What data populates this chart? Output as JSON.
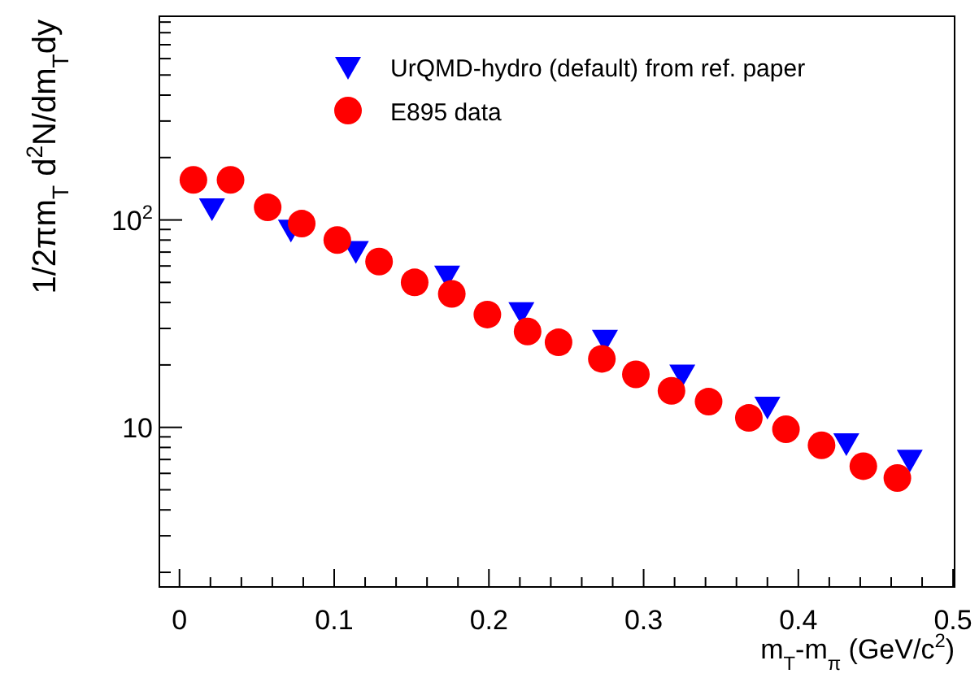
{
  "chart_data": {
    "type": "scatter",
    "xlabel": "m$_{T}$-m$_{π}$ (GeV/c$^{2}$)",
    "ylabel": "1/2πm$_{T}$ d$^{2}$N/dm$_{T}$dy",
    "log": "y",
    "legend": "top",
    "grid": false,
    "xlim": [
      -0.013,
      0.501
    ],
    "ylim": [
      1.7,
      960
    ],
    "xticks": [
      0,
      {
        "value": 0.02,
        "label": null
      },
      {
        "value": 0.04,
        "label": null
      },
      {
        "value": 0.06,
        "label": null
      },
      {
        "value": 0.08,
        "label": null
      },
      0.1,
      {
        "value": 0.12,
        "label": null
      },
      {
        "value": 0.14,
        "label": null
      },
      {
        "value": 0.16,
        "label": null
      },
      {
        "value": 0.18,
        "label": null
      },
      0.2,
      {
        "value": 0.22,
        "label": null
      },
      {
        "value": 0.24,
        "label": null
      },
      {
        "value": 0.26,
        "label": null
      },
      {
        "value": 0.28,
        "label": null
      },
      0.3,
      {
        "value": 0.32,
        "label": null
      },
      {
        "value": 0.34,
        "label": null
      },
      {
        "value": 0.36,
        "label": null
      },
      {
        "value": 0.38,
        "label": null
      },
      0.4,
      {
        "value": 0.42,
        "label": null
      },
      {
        "value": 0.44,
        "label": null
      },
      {
        "value": 0.46,
        "label": null
      },
      {
        "value": 0.48,
        "label": null
      },
      0.5
    ],
    "yticks": [
      {
        "value": 2,
        "label": null
      },
      {
        "value": 3,
        "label": null
      },
      {
        "value": 4,
        "label": null
      },
      {
        "value": 5,
        "label": null
      },
      {
        "value": 6,
        "label": null
      },
      {
        "value": 7,
        "label": null
      },
      {
        "value": 8,
        "label": null
      },
      {
        "value": 9,
        "label": null
      },
      10,
      {
        "value": 20,
        "label": null
      },
      {
        "value": 30,
        "label": null
      },
      {
        "value": 40,
        "label": null
      },
      {
        "value": 50,
        "label": null
      },
      {
        "value": 60,
        "label": null
      },
      {
        "value": 70,
        "label": null
      },
      {
        "value": 80,
        "label": null
      },
      {
        "value": 90,
        "label": null
      },
      {
        "value": 100,
        "label": "10$^{2}$"
      },
      {
        "value": 200,
        "label": null
      },
      {
        "value": 300,
        "label": null
      },
      {
        "value": 400,
        "label": null
      },
      {
        "value": 500,
        "label": null
      },
      {
        "value": 600,
        "label": null
      },
      {
        "value": 700,
        "label": null
      },
      {
        "value": 800,
        "label": null
      },
      {
        "value": 900,
        "label": null
      }
    ],
    "series": [
      {
        "name": "UrQMD-hydro (default) from ref. paper",
        "color": "#0000ff",
        "marker": "triangle",
        "x": [
          0.021,
          0.072,
          0.114,
          0.173,
          0.221,
          0.275,
          0.325,
          0.38,
          0.431,
          0.472
        ],
        "values": [
          114,
          90,
          71,
          54,
          36,
          26.5,
          18,
          12.6,
          8.4,
          7.0
        ]
      },
      {
        "name": "E895 data",
        "color": "#ff0000",
        "marker": "circle",
        "x": [
          0.009,
          0.033,
          0.057,
          0.079,
          0.102,
          0.129,
          0.152,
          0.176,
          0.199,
          0.225,
          0.245,
          0.273,
          0.295,
          0.318,
          0.342,
          0.368,
          0.392,
          0.415,
          0.442,
          0.464
        ],
        "values": [
          156,
          156,
          115,
          96,
          80,
          63,
          50,
          44,
          35,
          29,
          25.7,
          21.4,
          18,
          15,
          13.3,
          11.1,
          9.8,
          8.2,
          6.5,
          5.7
        ]
      }
    ]
  }
}
